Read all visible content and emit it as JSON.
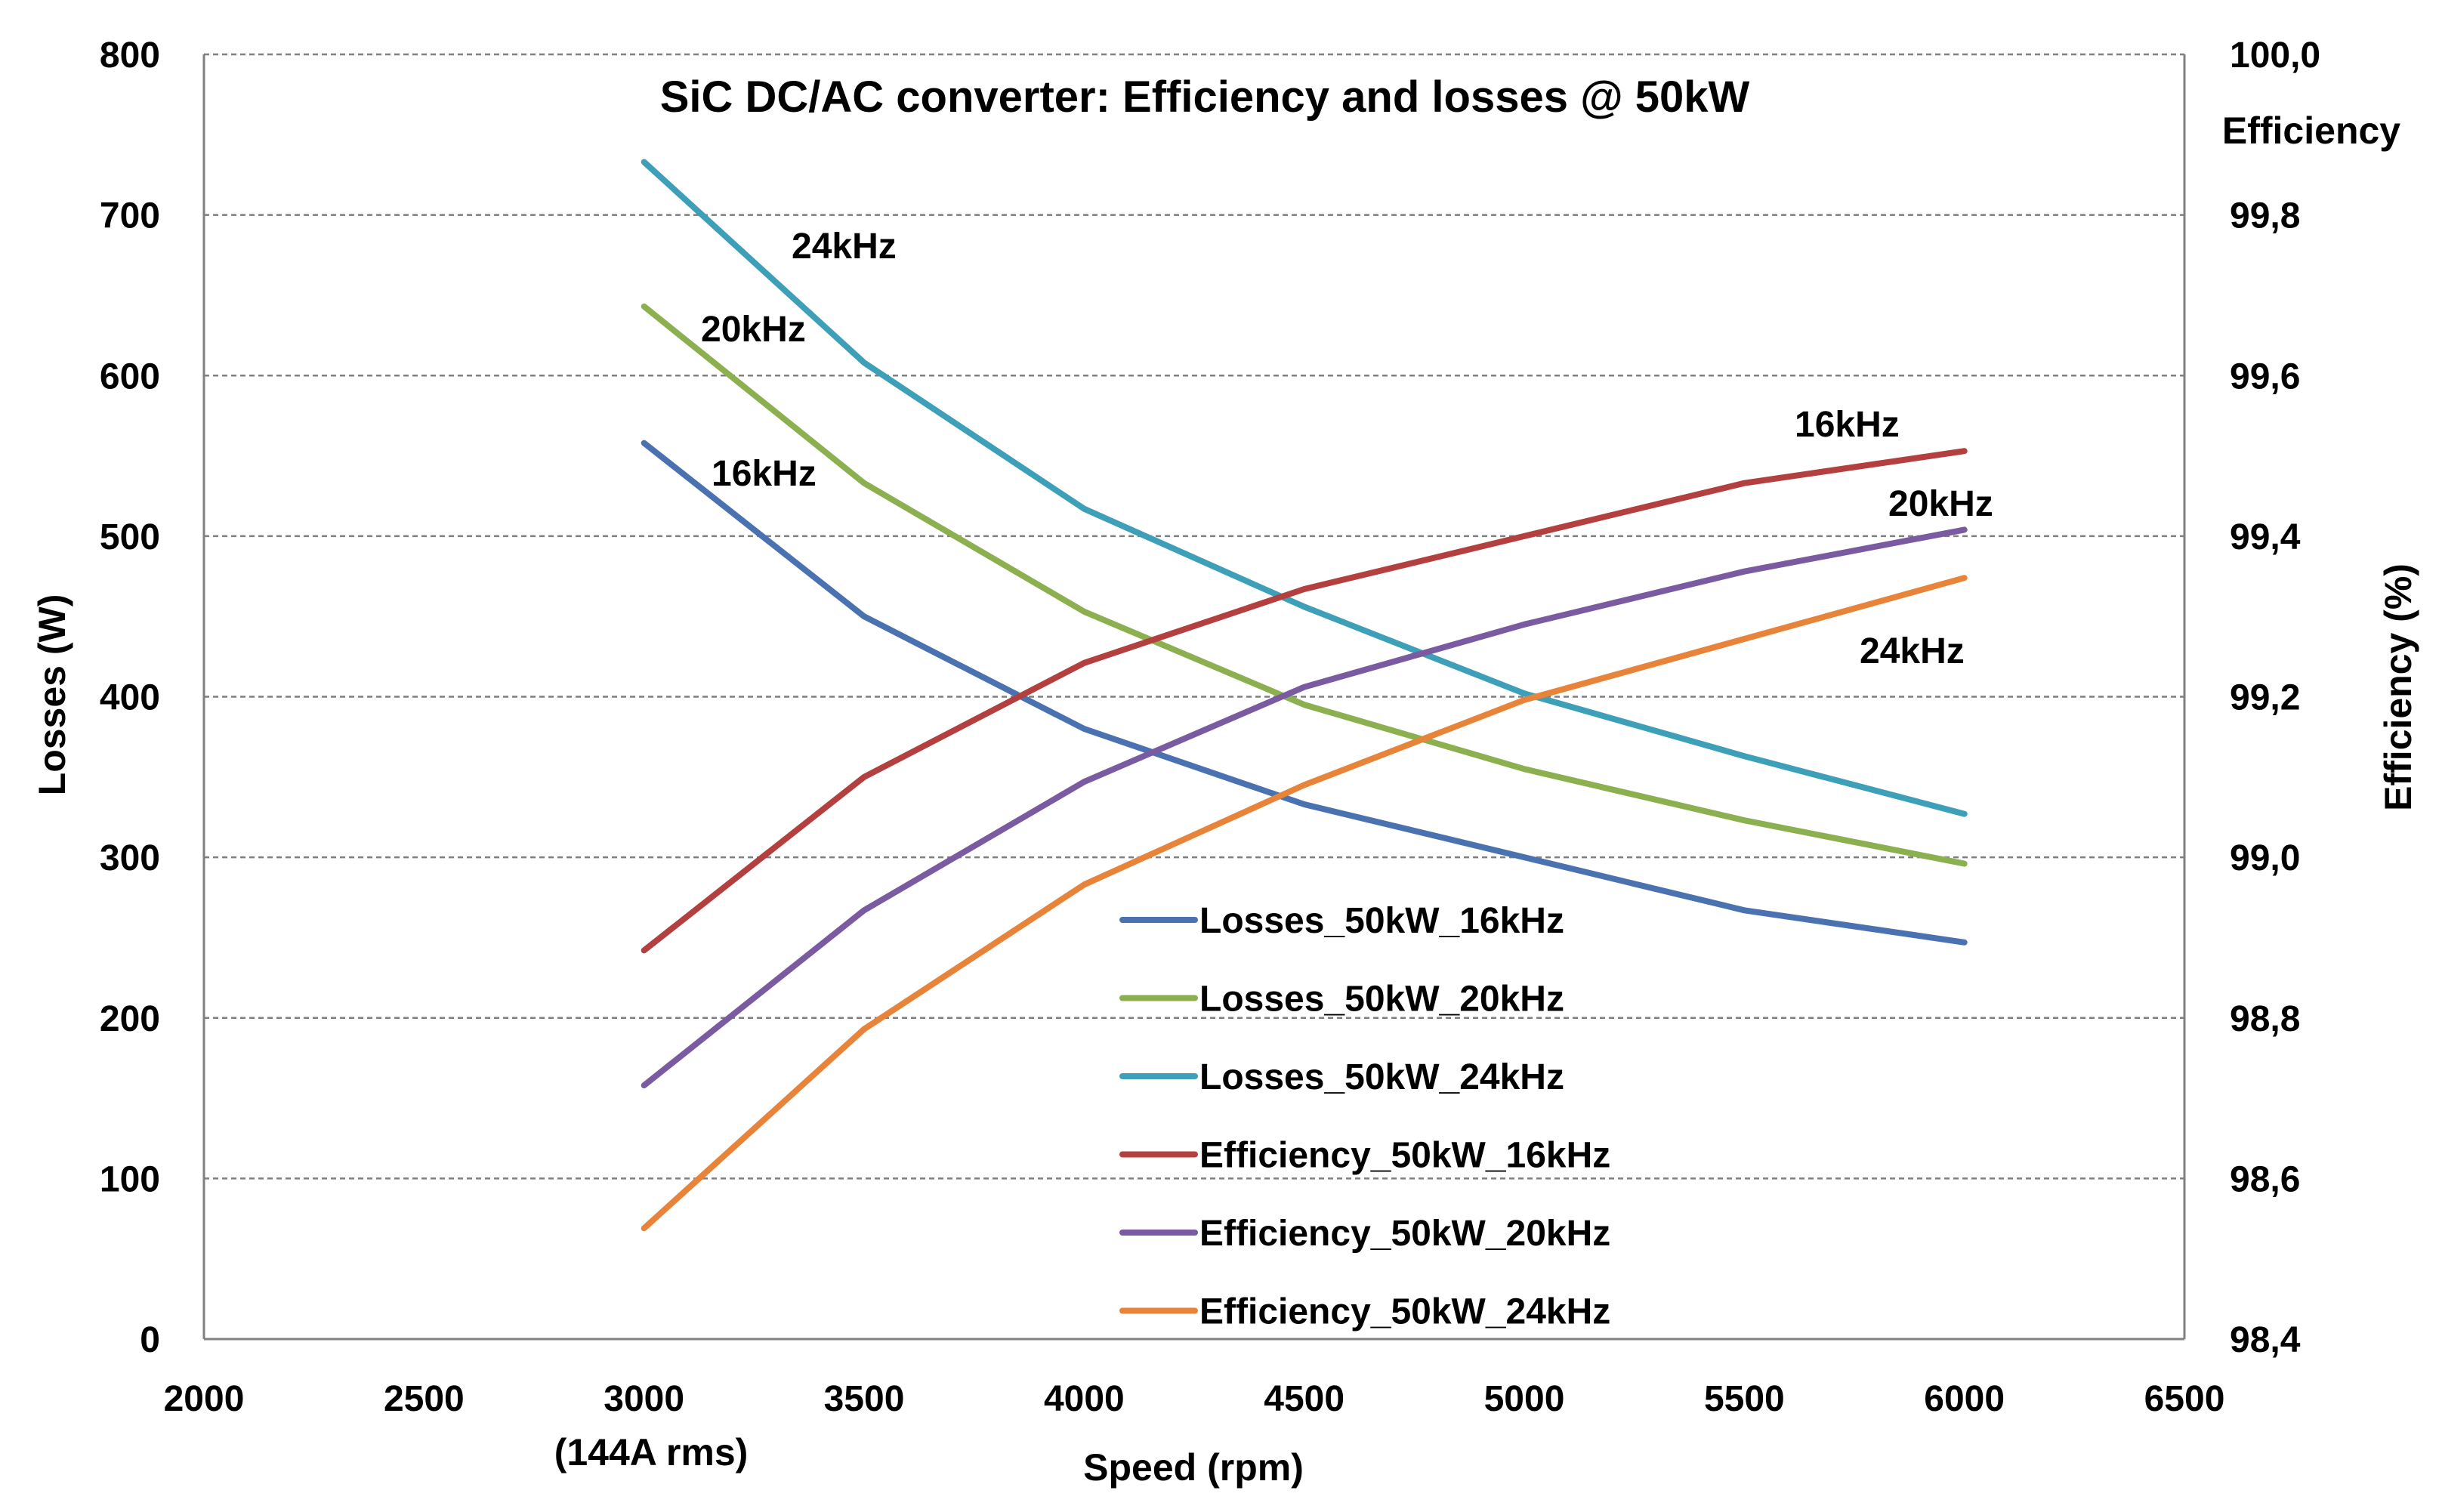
{
  "chart_data": {
    "type": "line",
    "title": "SiC DC/AC converter:  Efficiency and losses @ 50kW",
    "xlabel": "Speed (rpm)",
    "xlabel_note": "(144A rms)",
    "ylabel_left": "Losses (W)",
    "ylabel_right": "Efficiency (%)",
    "right_axis_caption": "Efficiency",
    "xlim": [
      2000,
      6500
    ],
    "xticks": [
      2000,
      2500,
      3000,
      3500,
      4000,
      4500,
      5000,
      5500,
      6000,
      6500
    ],
    "xtick_labels": [
      "2000",
      "2500",
      "3000",
      "3500",
      "4000",
      "4500",
      "5000",
      "5500",
      "6000",
      "6500"
    ],
    "ylim_left": [
      0,
      800
    ],
    "yticks_left": [
      0,
      100,
      200,
      300,
      400,
      500,
      600,
      700,
      800
    ],
    "ytick_labels_left": [
      "0",
      "100",
      "200",
      "300",
      "400",
      "500",
      "600",
      "700",
      "800"
    ],
    "ylim_right": [
      98.4,
      100.0
    ],
    "yticks_right": [
      98.4,
      98.6,
      98.8,
      99.0,
      99.2,
      99.4,
      99.6,
      99.8,
      100.0
    ],
    "ytick_labels_right": [
      "98,4",
      "98,6",
      "98,8",
      "99,0",
      "99,2",
      "99,4",
      "99,6",
      "99,8",
      "100,0"
    ],
    "grid": true,
    "legend_position": "bottom-center",
    "series": [
      {
        "name": "Losses_50kW_16kHz",
        "axis": "left",
        "color": "#4a72b0",
        "x": [
          3000,
          3500,
          4000,
          4500,
          5000,
          5500,
          6000
        ],
        "values": [
          558,
          450,
          380,
          333,
          300,
          267,
          247
        ]
      },
      {
        "name": "Losses_50kW_20kHz",
        "axis": "left",
        "color": "#8cb050",
        "x": [
          3000,
          3500,
          4000,
          4500,
          5000,
          5500,
          6000
        ],
        "values": [
          643,
          533,
          453,
          395,
          355,
          323,
          296
        ]
      },
      {
        "name": "Losses_50kW_24kHz",
        "axis": "left",
        "color": "#3d9fb8",
        "x": [
          3000,
          3500,
          4000,
          4500,
          5000,
          5500,
          6000
        ],
        "values": [
          733,
          608,
          517,
          456,
          402,
          363,
          327
        ]
      },
      {
        "name": "Efficiency_50kW_16kHz",
        "axis": "right",
        "color": "#b3403e",
        "x": [
          3000,
          3500,
          4000,
          4500,
          5000,
          5500,
          6000
        ],
        "values": [
          98.884,
          99.1,
          99.242,
          99.334,
          99.4,
          99.466,
          99.506
        ]
      },
      {
        "name": "Efficiency_50kW_20kHz",
        "axis": "right",
        "color": "#7a5ba1",
        "x": [
          3000,
          3500,
          4000,
          4500,
          5000,
          5500,
          6000
        ],
        "values": [
          98.716,
          98.934,
          99.094,
          99.212,
          99.29,
          99.356,
          99.408
        ]
      },
      {
        "name": "Efficiency_50kW_24kHz",
        "axis": "right",
        "color": "#e8843a",
        "x": [
          3000,
          3500,
          4000,
          4500,
          5000,
          5500,
          6000
        ],
        "values": [
          98.538,
          98.786,
          98.966,
          99.09,
          99.196,
          99.272,
          99.348
        ]
      }
    ],
    "annotations": [
      {
        "text": "24kHz",
        "near_series": "Losses_50kW_24kHz"
      },
      {
        "text": "20kHz",
        "near_series": "Losses_50kW_20kHz"
      },
      {
        "text": "16kHz",
        "near_series": "Losses_50kW_16kHz"
      },
      {
        "text": "16kHz",
        "near_series": "Efficiency_50kW_16kHz"
      },
      {
        "text": "20kHz",
        "near_series": "Efficiency_50kW_20kHz"
      },
      {
        "text": "24kHz",
        "near_series": "Efficiency_50kW_24kHz"
      }
    ]
  }
}
